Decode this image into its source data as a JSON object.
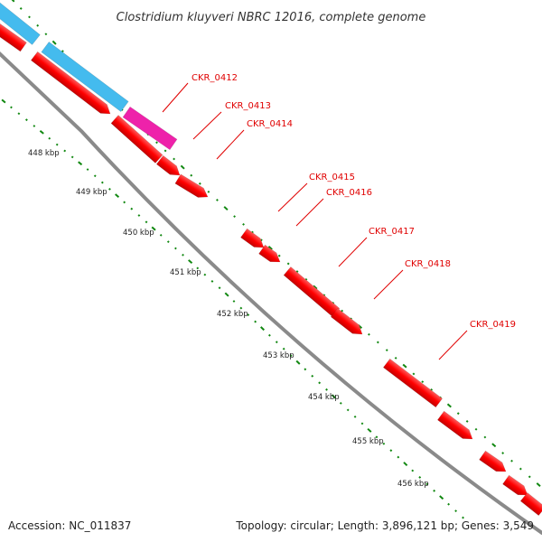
{
  "title": "Clostridium kluyveri NBRC 12016, complete genome",
  "footer": {
    "accession": "Accession: NC_011837",
    "summary": "Topology: circular; Length: 3,896,121 bp; Genes: 3,549"
  },
  "scale_ticks": [
    "448 kbp",
    "449 kbp",
    "450 kbp",
    "451 kbp",
    "452 kbp",
    "453 kbp",
    "454 kbp",
    "455 kbp",
    "456 kbp"
  ],
  "gene_labels": [
    "CKR_0412",
    "CKR_0413",
    "CKR_0414",
    "CKR_0415",
    "CKR_0416",
    "CKR_0417",
    "CKR_0418",
    "CKR_0419"
  ],
  "colors": {
    "cds": "#ff0000",
    "rrna": "#44bbee",
    "trna": "#ee22aa",
    "backbone": "#8a8a8a",
    "scale_dots": "#118811",
    "label_line": "#e00000",
    "gene_label_text": "#e00000"
  }
}
